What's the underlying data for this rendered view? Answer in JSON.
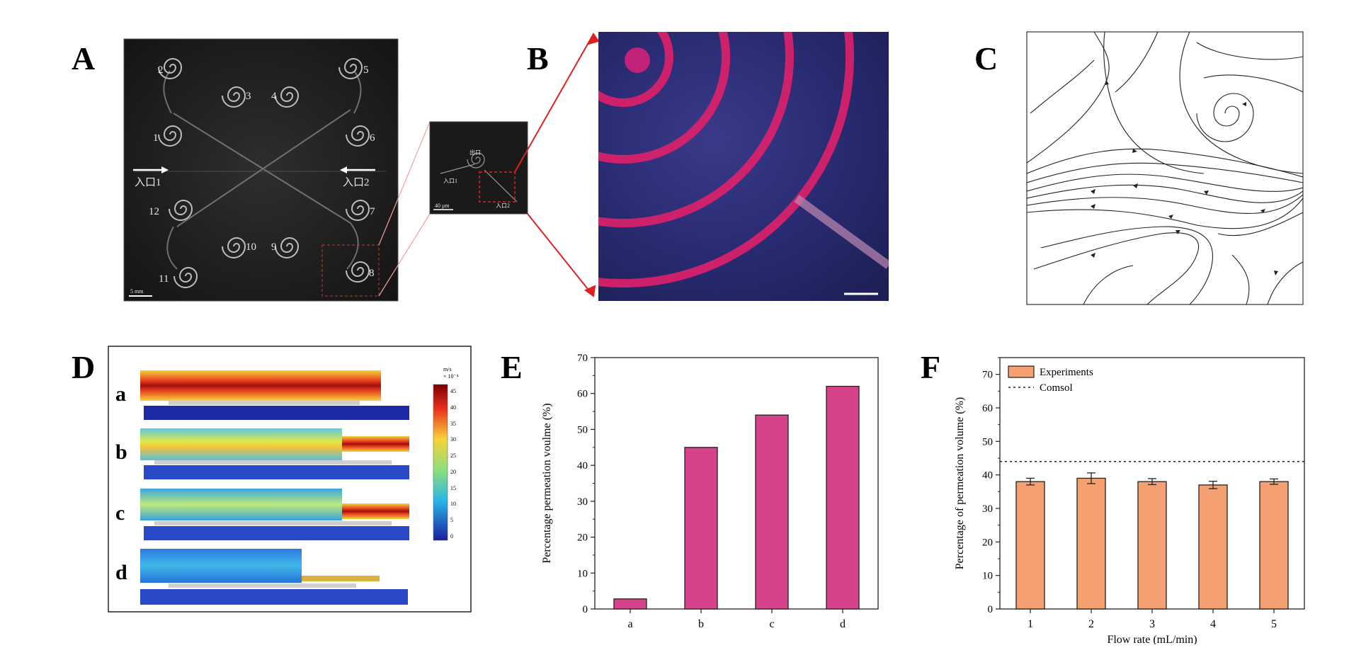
{
  "panels": {
    "A": {
      "letter": "A",
      "chip_numbers": [
        "1",
        "2",
        "3",
        "4",
        "5",
        "6",
        "7",
        "8",
        "9",
        "10",
        "11",
        "12"
      ],
      "inlet_left": "入口1",
      "inlet_right": "入口2",
      "scale_bar": "5 mm"
    },
    "A_inset": {
      "labels": [
        "出口",
        "入口1",
        "入口2"
      ],
      "scale_bar": "40 μm"
    },
    "B": {
      "letter": "B"
    },
    "C": {
      "letter": "C"
    },
    "D": {
      "letter": "D",
      "row_labels": [
        "a",
        "b",
        "c",
        "d"
      ],
      "colorbar_unit": "m/s",
      "colorbar_exp": "× 10⁻⁴",
      "colorbar_ticks": [
        "45",
        "40",
        "35",
        "30",
        "25",
        "20",
        "15",
        "10",
        "5",
        "0"
      ]
    },
    "E": {
      "letter": "E"
    },
    "F": {
      "letter": "F"
    }
  },
  "chart_data": [
    {
      "panel": "E",
      "type": "bar",
      "categories": [
        "a",
        "b",
        "c",
        "d"
      ],
      "values": [
        2.8,
        45,
        54,
        62
      ],
      "ylabel": "Percentage permeation voulme (%)",
      "xlabel": "",
      "ylim": [
        0,
        70
      ],
      "yticks": [
        "0",
        "10",
        "20",
        "30",
        "40",
        "50",
        "60",
        "70"
      ],
      "bar_color": "#d6438a"
    },
    {
      "panel": "F",
      "type": "bar",
      "categories": [
        "1",
        "2",
        "3",
        "4",
        "5"
      ],
      "series": [
        {
          "name": "Experiments",
          "values": [
            38,
            39,
            38,
            37,
            38
          ],
          "errors": [
            1.0,
            1.6,
            0.9,
            1.1,
            0.8
          ]
        }
      ],
      "reference_line": {
        "name": "Comsol",
        "value": 44
      },
      "xlabel": "Flow rate (mL/min)",
      "ylabel": "Percentage of permeation volume (%)",
      "ylim": [
        0,
        75
      ],
      "yticks": [
        "0",
        "10",
        "20",
        "30",
        "40",
        "50",
        "60",
        "70"
      ],
      "bar_color": "#f4a070",
      "legend_position": "top-left"
    }
  ]
}
